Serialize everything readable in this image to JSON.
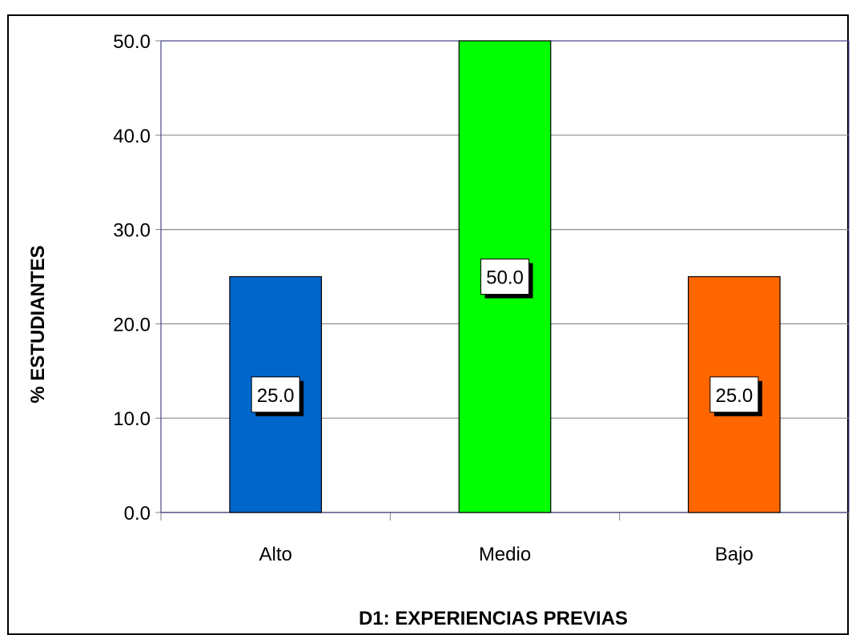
{
  "chart_data": {
    "type": "bar",
    "categories": [
      "Alto",
      "Medio",
      "Bajo"
    ],
    "values": [
      25.0,
      50.0,
      25.0
    ],
    "data_labels": [
      "25.0",
      "50.0",
      "25.0"
    ],
    "colors": [
      "#0066CC",
      "#00FF00",
      "#FF6600"
    ],
    "title": "",
    "xlabel": "D1: EXPERIENCIAS PREVIAS",
    "ylabel": "% ESTUDIANTES",
    "ylim": [
      0,
      50
    ],
    "yticks": [
      "0.0",
      "10.0",
      "20.0",
      "30.0",
      "40.0",
      "50.0"
    ],
    "grid": true,
    "legend": "none"
  }
}
